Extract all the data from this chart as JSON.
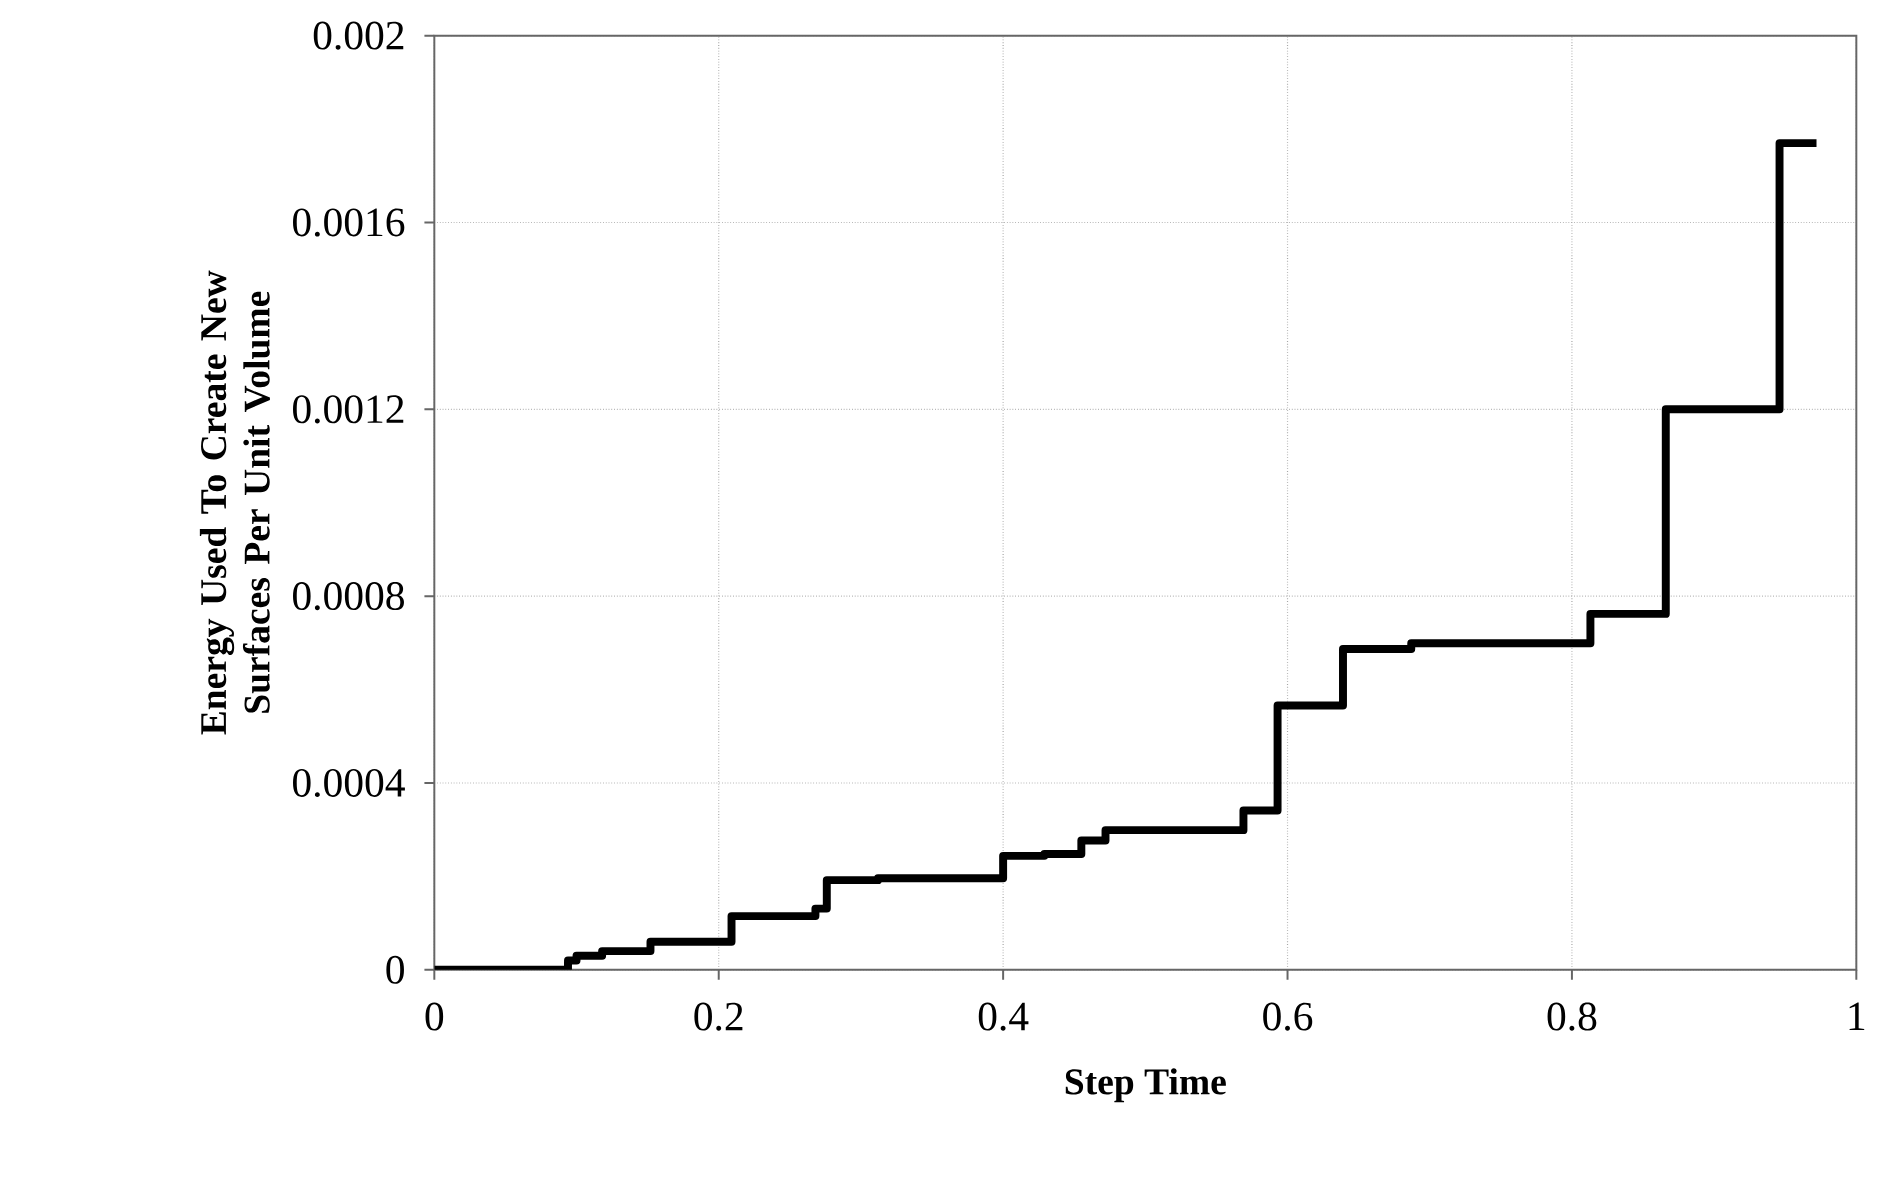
{
  "chart_data": {
    "type": "step",
    "xlabel": "Step Time",
    "ylabel": "Energy Used To Create New Surfaces Per Unit Volume",
    "xlim": [
      0,
      1
    ],
    "ylim": [
      0,
      0.002
    ],
    "xticks": [
      0,
      0.2,
      0.4,
      0.6,
      0.8,
      1
    ],
    "yticks": [
      0,
      0.0004,
      0.0008,
      0.0012,
      0.0016,
      0.002
    ],
    "grid": true,
    "marker": "none",
    "line_style": "solid",
    "series": [
      {
        "color": "#000000",
        "x": [
          0,
          0.094,
          0.1,
          0.118,
          0.152,
          0.209,
          0.268,
          0.276,
          0.312,
          0.4,
          0.429,
          0.455,
          0.472,
          0.569,
          0.593,
          0.639,
          0.687,
          0.813,
          0.866,
          0.946,
          0.972
        ],
        "values": [
          0,
          2e-05,
          3e-05,
          4e-05,
          6e-05,
          0.000115,
          0.000131,
          0.000192,
          0.000196,
          0.000244,
          0.000248,
          0.000277,
          0.000299,
          0.000341,
          0.000566,
          0.000687,
          0.000699,
          0.000762,
          0.0012,
          0.00177,
          0.00177
        ]
      }
    ]
  }
}
